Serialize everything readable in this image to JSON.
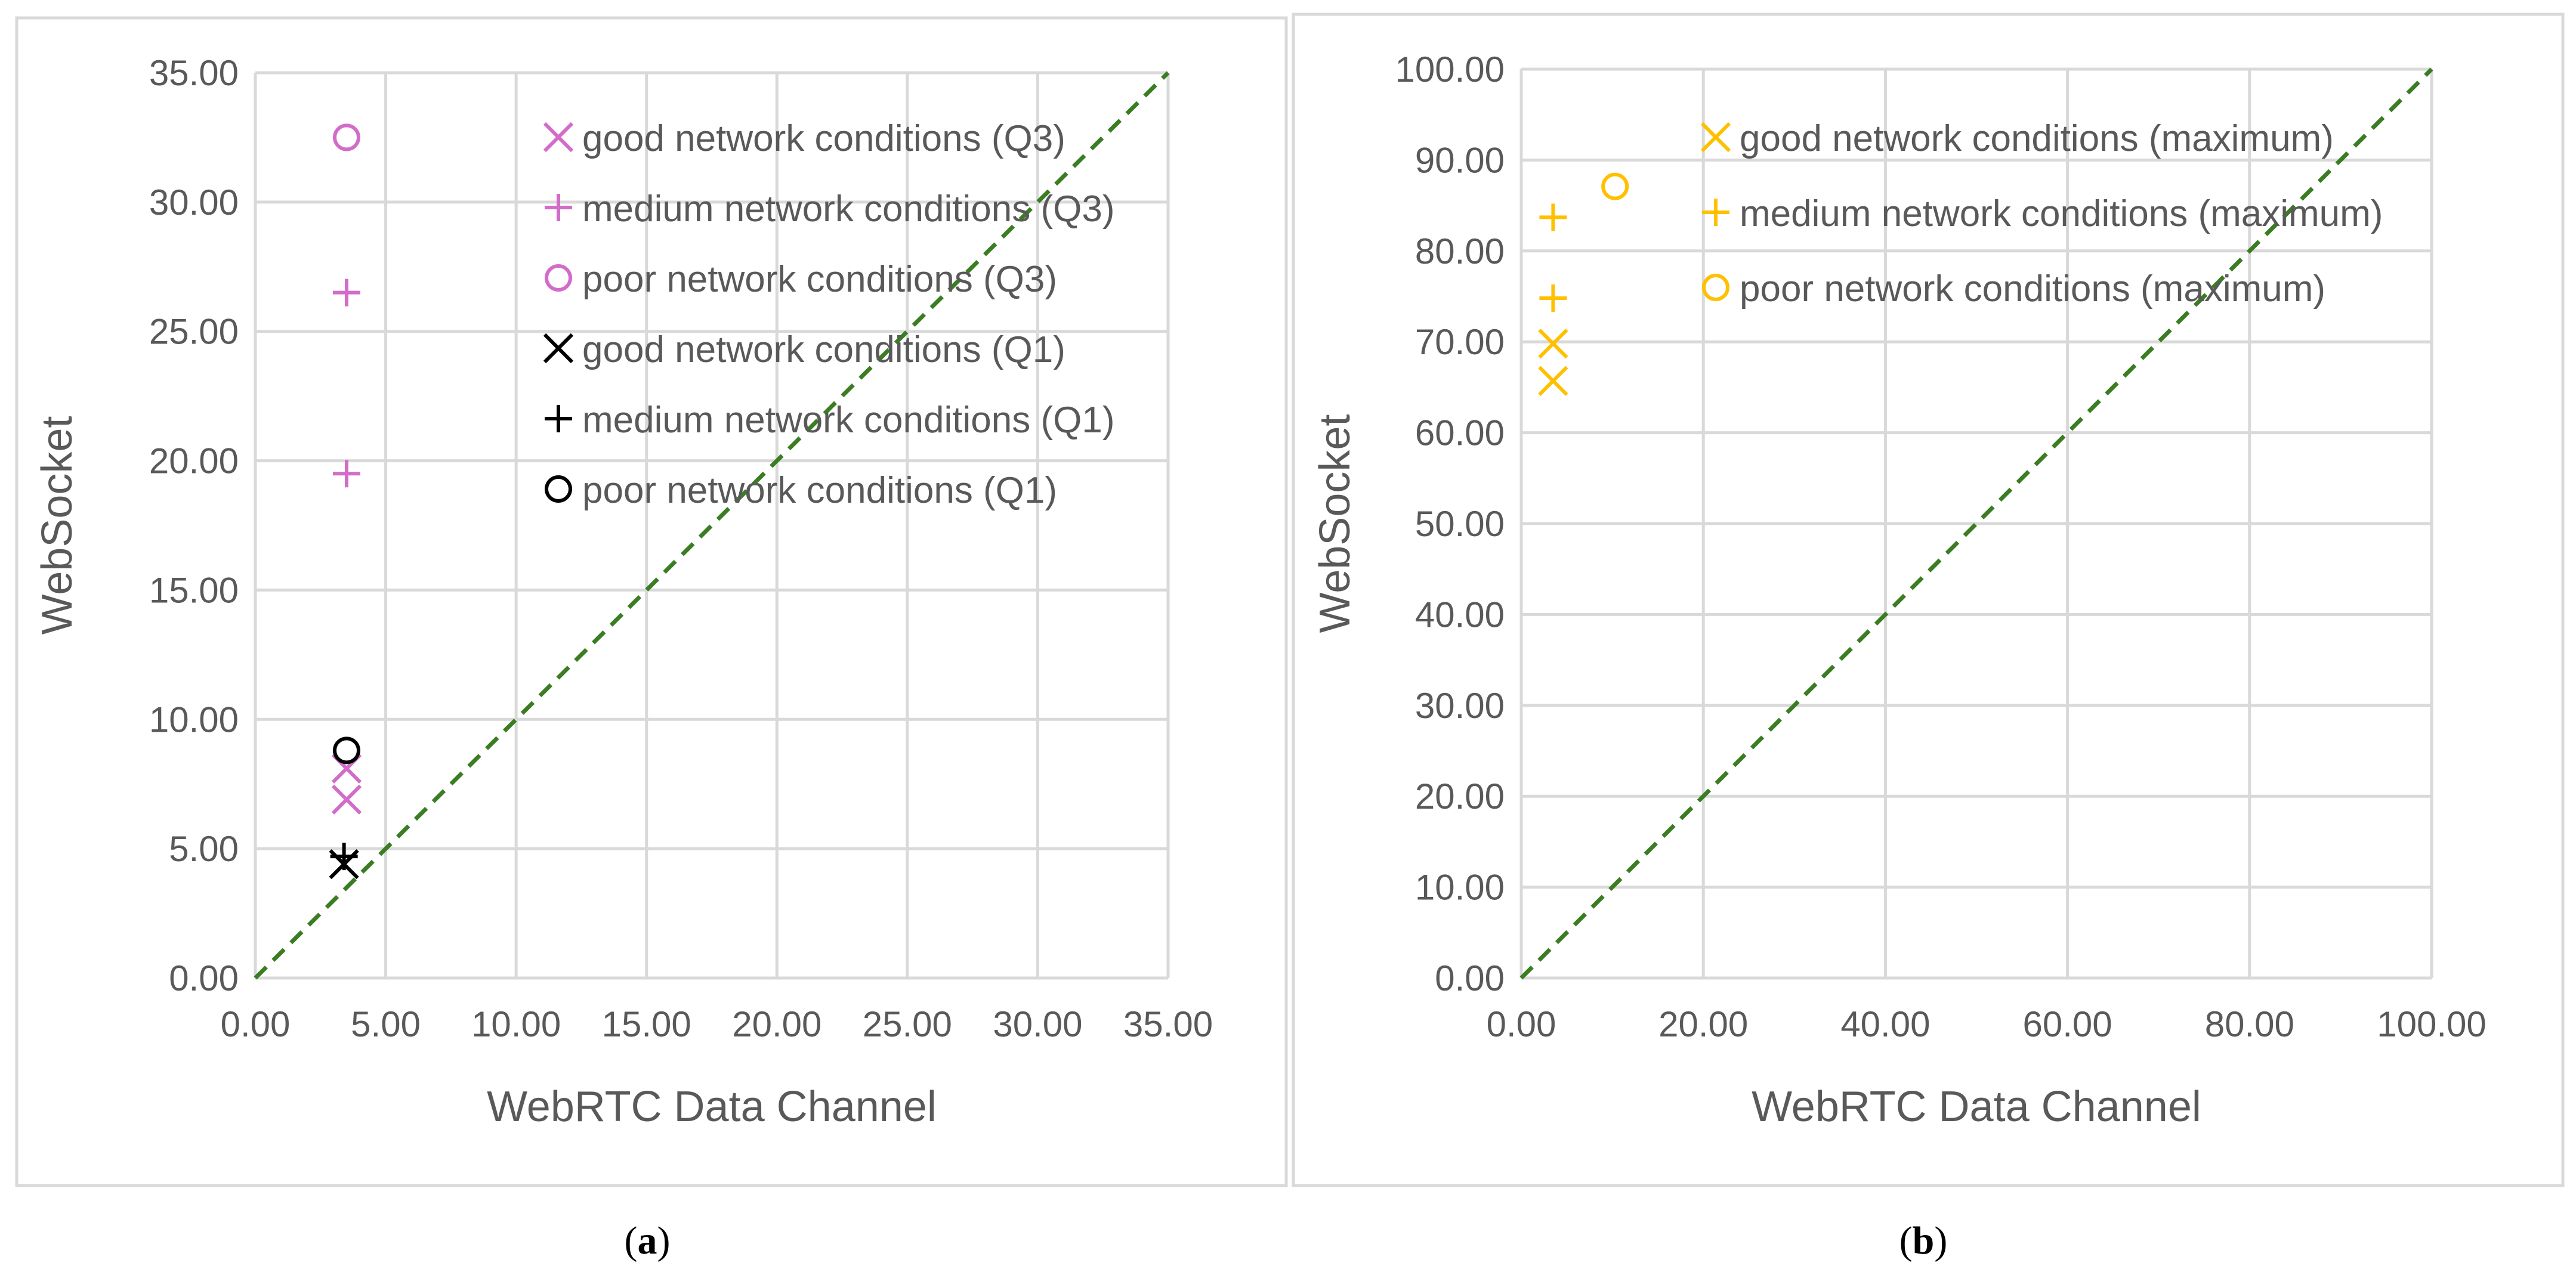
{
  "chart_data": [
    {
      "type": "scatter",
      "panel_label": "a",
      "xlabel": "WebRTC Data Channel",
      "ylabel": "WebSocket",
      "xlim": [
        0,
        35
      ],
      "ylim": [
        0,
        35
      ],
      "xticks": [
        "0.00",
        "5.00",
        "10.00",
        "15.00",
        "20.00",
        "25.00",
        "30.00",
        "35.00"
      ],
      "yticks": [
        "0.00",
        "5.00",
        "10.00",
        "15.00",
        "20.00",
        "25.00",
        "30.00",
        "35.00"
      ],
      "grid": true,
      "reference_line": {
        "type": "y=x",
        "style": "dashed",
        "color": "#3a7d22"
      },
      "legend_position": "top-right",
      "series": [
        {
          "name": "good network conditions (Q3)",
          "marker": "x",
          "color": "#d36cc9",
          "points": [
            {
              "x": 3.5,
              "y": 6.9
            },
            {
              "x": 3.5,
              "y": 8.1
            }
          ]
        },
        {
          "name": "medium network conditions (Q3)",
          "marker": "plus",
          "color": "#d36cc9",
          "points": [
            {
              "x": 3.5,
              "y": 26.5
            },
            {
              "x": 3.5,
              "y": 19.5
            }
          ]
        },
        {
          "name": "poor network conditions (Q3)",
          "marker": "circle",
          "color": "#d36cc9",
          "points": [
            {
              "x": 3.5,
              "y": 32.5
            }
          ]
        },
        {
          "name": "good network conditions (Q1)",
          "marker": "x",
          "color": "#000000",
          "points": [
            {
              "x": 3.4,
              "y": 4.4
            }
          ]
        },
        {
          "name": "medium network conditions (Q1)",
          "marker": "plus",
          "color": "#000000",
          "points": [
            {
              "x": 3.4,
              "y": 4.7
            }
          ]
        },
        {
          "name": "poor network conditions (Q1)",
          "marker": "circle",
          "color": "#000000",
          "points": [
            {
              "x": 3.5,
              "y": 8.8
            }
          ]
        }
      ]
    },
    {
      "type": "scatter",
      "panel_label": "b",
      "xlabel": "WebRTC Data Channel",
      "ylabel": "WebSocket",
      "xlim": [
        0,
        100
      ],
      "ylim": [
        0,
        100
      ],
      "xticks": [
        "0.00",
        "20.00",
        "40.00",
        "60.00",
        "80.00",
        "100.00"
      ],
      "yticks": [
        "0.00",
        "10.00",
        "20.00",
        "30.00",
        "40.00",
        "50.00",
        "60.00",
        "70.00",
        "80.00",
        "90.00",
        "100.00"
      ],
      "grid": true,
      "reference_line": {
        "type": "y=x",
        "style": "dashed",
        "color": "#3a7d22"
      },
      "legend_position": "top-right",
      "series": [
        {
          "name": "good network conditions (maximum)",
          "marker": "x",
          "color": "#ffc000",
          "points": [
            {
              "x": 3.5,
              "y": 69.8
            },
            {
              "x": 3.5,
              "y": 65.7
            }
          ]
        },
        {
          "name": "medium network conditions (maximum)",
          "marker": "plus",
          "color": "#ffc000",
          "points": [
            {
              "x": 3.5,
              "y": 83.7
            },
            {
              "x": 3.5,
              "y": 74.8
            }
          ]
        },
        {
          "name": "poor network conditions (maximum)",
          "marker": "circle",
          "color": "#ffc000",
          "points": [
            {
              "x": 10.3,
              "y": 87.1
            }
          ]
        }
      ]
    }
  ],
  "captions": {
    "a": {
      "open": "(",
      "letter": "a",
      "close": ")"
    },
    "b": {
      "open": "(",
      "letter": "b",
      "close": ")"
    }
  }
}
